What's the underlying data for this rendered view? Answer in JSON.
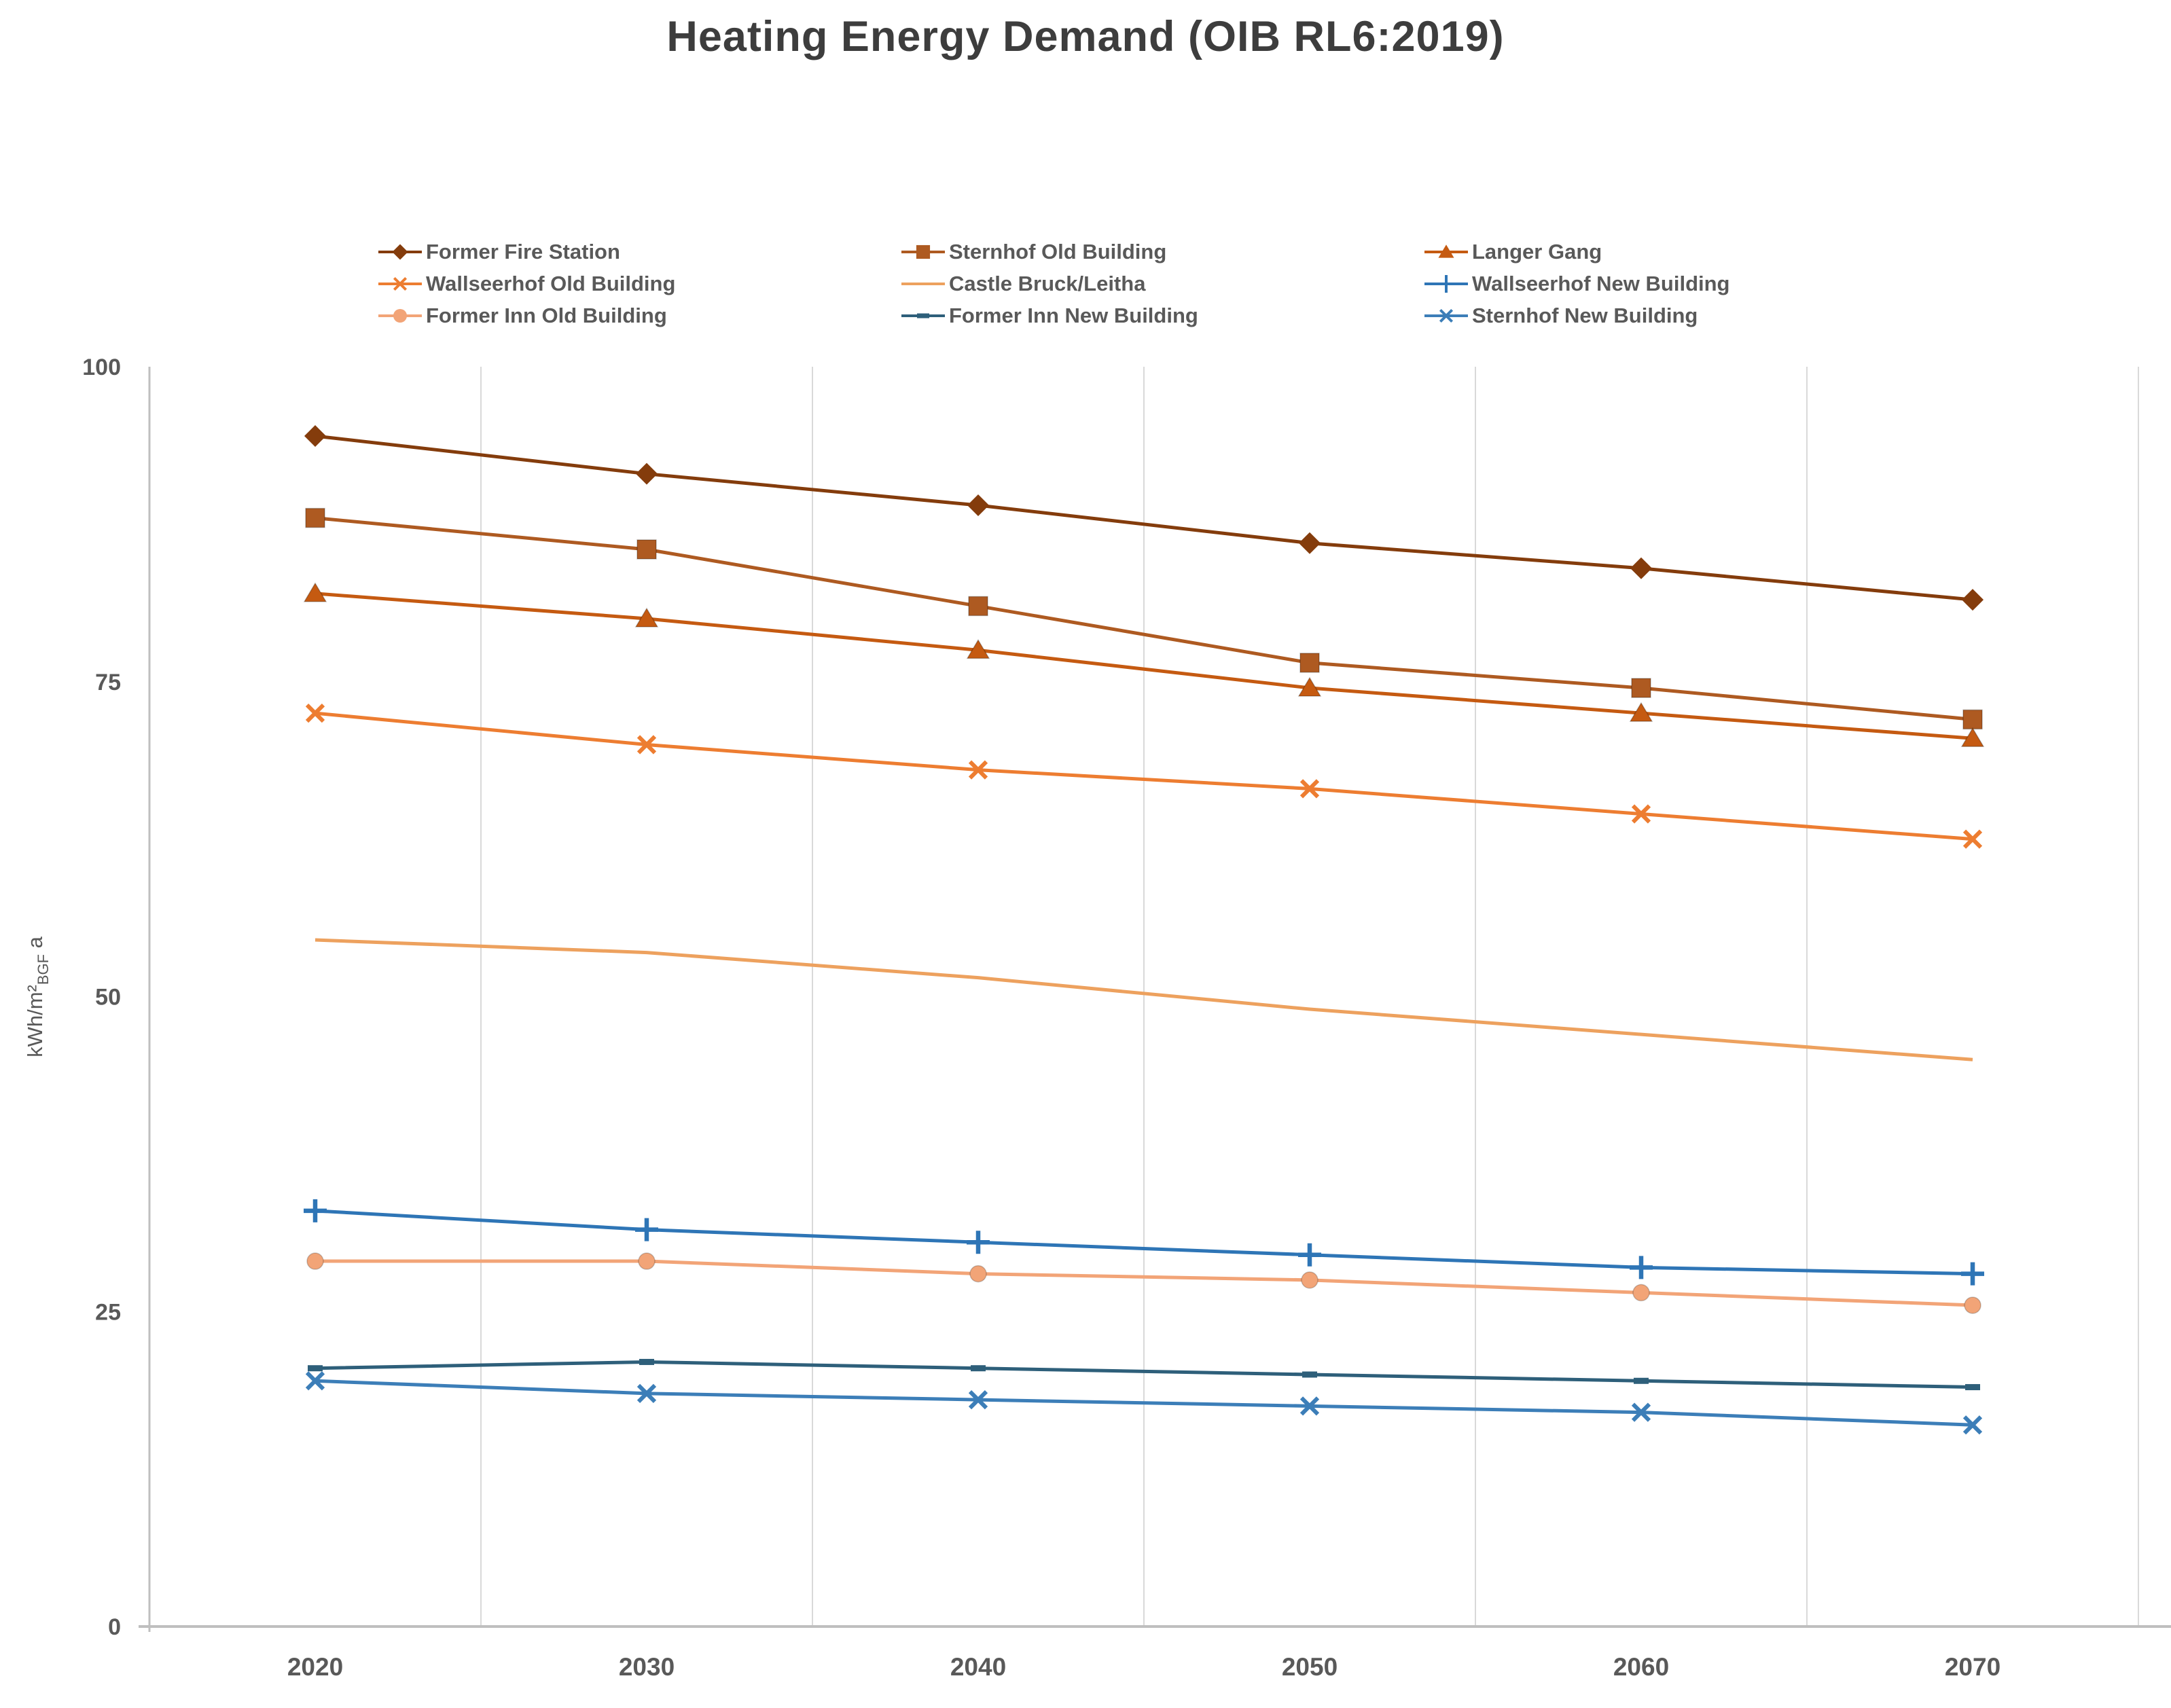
{
  "chart_data": {
    "type": "line",
    "title": "Heating Energy Demand (OIB RL6:2019)",
    "categories": [
      "2020",
      "2030",
      "2040",
      "2050",
      "2060",
      "2070"
    ],
    "xlabel": "",
    "ylabel_pre": "kWh/m²",
    "ylabel_sub": "BGF",
    "ylabel_post": " a",
    "ylim": [
      0,
      100
    ],
    "y_ticks": [
      0,
      25,
      50,
      75,
      100
    ],
    "grid": "vertical-only",
    "legend_position": "top",
    "legend_columns": 3,
    "axis_color": "#BFBFBF",
    "gridline_color": "#D9D9D9",
    "tick_label_color": "#595959",
    "series": [
      {
        "name": "Former Fire Station",
        "color": "#843C0C",
        "marker": "diamond",
        "values": [
          94.5,
          91.5,
          89,
          86,
          84,
          81.5
        ]
      },
      {
        "name": "Sternhof Old Building",
        "color": "#AE5A21",
        "marker": "square",
        "values": [
          88,
          85.5,
          81,
          76.5,
          74.5,
          72
        ]
      },
      {
        "name": "Langer Gang",
        "color": "#C55A11",
        "marker": "triangle",
        "values": [
          82,
          80,
          77.5,
          74.5,
          72.5,
          70.5
        ]
      },
      {
        "name": "Wallseerhof Old Building",
        "color": "#ED7D31",
        "marker": "x",
        "values": [
          72.5,
          70,
          68,
          66.5,
          64.5,
          62.5
        ]
      },
      {
        "name": "Castle Bruck/Leitha",
        "color": "#EDA15E",
        "marker": "none",
        "values": [
          54.5,
          53.5,
          51.5,
          49,
          47,
          45
        ]
      },
      {
        "name": "Wallseerhof New Building",
        "color": "#2E75B6",
        "marker": "plus",
        "values": [
          33,
          31.5,
          30.5,
          29.5,
          28.5,
          28
        ]
      },
      {
        "name": "Former Inn Old Building",
        "color": "#F2A477",
        "marker": "circle",
        "values": [
          29,
          29,
          28,
          27.5,
          26.5,
          25.5
        ]
      },
      {
        "name": "Former Inn New Building",
        "color": "#2E5F7A",
        "marker": "dash",
        "values": [
          20.5,
          21,
          20.5,
          20,
          19.5,
          19
        ]
      },
      {
        "name": "Sternhof New Building",
        "color": "#3C7EB8",
        "marker": "x",
        "values": [
          19.5,
          18.5,
          18,
          17.5,
          17,
          16
        ]
      }
    ]
  }
}
